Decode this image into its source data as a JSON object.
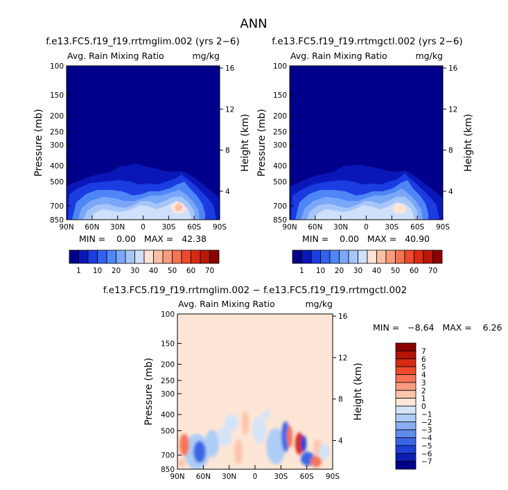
{
  "title": "ANN",
  "panels": [
    {
      "title": "f.e13.FC5.f19_f19.rrtmglim.002 (yrs 2−6)",
      "var_label": "Avg. Rain Mixing Ratio",
      "units": "mg/kg",
      "stats": "MIN =    0.00   MAX =   42.38"
    },
    {
      "title": "f.e13.FC5.f19_f19.rrtmgctl.002 (yrs 2−6)",
      "var_label": "Avg. Rain Mixing Ratio",
      "units": "mg/kg",
      "stats": "MIN =    0.00   MAX =   40.90"
    },
    {
      "title": "f.e13.FC5.f19_f19.rrtmglim.002 − f.e13.FC5.f19_f19.rrtmgctl.002",
      "var_label": "Avg. Rain Mixing Ratio",
      "units": "mg/kg",
      "stats": "MIN =   −8.64   MAX =    6.26"
    }
  ],
  "chart_data": [
    {
      "type": "heatmap",
      "title": "f.e13.FC5.f19_f19.rrtmglim.002 (yrs 2−6)",
      "xlabel": "",
      "ylabel": "Pressure (mb)",
      "y2label": "Height (km)",
      "x_ticks": [
        "90N",
        "60N",
        "30N",
        "0",
        "30S",
        "60S",
        "90S"
      ],
      "y_ticks": [
        "100",
        "150",
        "200",
        "250",
        "300",
        "400",
        "500",
        "700",
        "850"
      ],
      "y2_ticks": [
        "16",
        "12",
        "8",
        "4"
      ],
      "min": 0.0,
      "max": 42.38,
      "colorbar_levels": [
        "1",
        "10",
        "20",
        "30",
        "40",
        "50",
        "60",
        "70"
      ],
      "colorbar_colors": [
        "#00008a",
        "#0a17b8",
        "#1a3ce0",
        "#2f62f0",
        "#4f86f6",
        "#7aa7f8",
        "#a6c6fa",
        "#cfe0fb",
        "#fde4d6",
        "#fbc0a4",
        "#f89c7c",
        "#f37553",
        "#ec4a2c",
        "#d92b14",
        "#b91708",
        "#8c0000"
      ]
    },
    {
      "type": "heatmap",
      "title": "f.e13.FC5.f19_f19.rrtmgctl.002 (yrs 2−6)",
      "xlabel": "",
      "ylabel": "Pressure (mb)",
      "y2label": "Height (km)",
      "x_ticks": [
        "90N",
        "60N",
        "30N",
        "0",
        "30S",
        "60S",
        "90S"
      ],
      "y_ticks": [
        "100",
        "150",
        "200",
        "250",
        "300",
        "400",
        "500",
        "700",
        "850"
      ],
      "y2_ticks": [
        "16",
        "12",
        "8",
        "4"
      ],
      "min": 0.0,
      "max": 40.9,
      "colorbar_levels": [
        "1",
        "10",
        "20",
        "30",
        "40",
        "50",
        "60",
        "70"
      ],
      "colorbar_colors": [
        "#00008a",
        "#0a17b8",
        "#1a3ce0",
        "#2f62f0",
        "#4f86f6",
        "#7aa7f8",
        "#a6c6fa",
        "#cfe0fb",
        "#fde4d6",
        "#fbc0a4",
        "#f89c7c",
        "#f37553",
        "#ec4a2c",
        "#d92b14",
        "#b91708",
        "#8c0000"
      ]
    },
    {
      "type": "heatmap",
      "title": "f.e13.FC5.f19_f19.rrtmglim.002 − f.e13.FC5.f19_f19.rrtmgctl.002",
      "xlabel": "",
      "ylabel": "Pressure (mb)",
      "y2label": "Height (km)",
      "x_ticks": [
        "90N",
        "60N",
        "30N",
        "0",
        "30S",
        "60S",
        "90S"
      ],
      "y_ticks": [
        "100",
        "150",
        "200",
        "250",
        "300",
        "400",
        "500",
        "700",
        "850"
      ],
      "y2_ticks": [
        "16",
        "12",
        "8",
        "4"
      ],
      "min": -8.64,
      "max": 6.26,
      "colorbar_levels": [
        "7",
        "6",
        "5",
        "4",
        "3",
        "2",
        "1",
        "0",
        "−1",
        "−2",
        "−3",
        "−4",
        "−5",
        "−6",
        "−7"
      ],
      "colorbar_colors": [
        "#8c0000",
        "#b41408",
        "#d62a12",
        "#ee4a2a",
        "#f57456",
        "#f99c80",
        "#fcc4aa",
        "#fde6d6",
        "#d4e4f8",
        "#aecdf6",
        "#8ab0f2",
        "#5f8ced",
        "#3a66e6",
        "#1e40d6",
        "#0c1eb6",
        "#00008a"
      ]
    }
  ]
}
